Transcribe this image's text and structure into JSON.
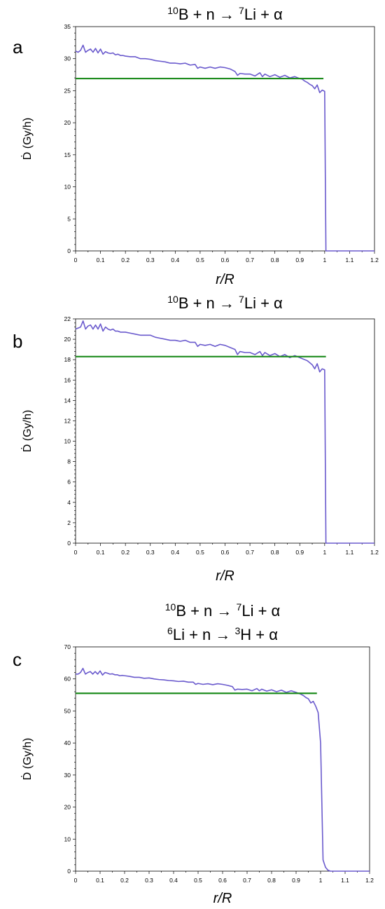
{
  "colors": {
    "series": "#6a5acd",
    "mean": "#1e8c1e",
    "axis": "#000000"
  },
  "chart_data": [
    {
      "type": "line",
      "panel": "a",
      "title_lines": [
        {
          "b_mass": "10",
          "b_text": "B + n → ",
          "li_mass": "7",
          "li_text": "Li + α"
        }
      ],
      "xlabel": "r/R",
      "ylabel": "Ḋ (Gy/h)",
      "xlim": [
        0,
        1.2
      ],
      "ylim": [
        0,
        35
      ],
      "xticks": [
        "0",
        "0.1",
        "0.2",
        "0.3",
        "0.4",
        "0.5",
        "0.6",
        "0.7",
        "0.8",
        "0.9",
        "1",
        "1.1",
        "1.2"
      ],
      "yticks": [
        "0",
        "5",
        "10",
        "15",
        "20",
        "25",
        "30",
        "35"
      ],
      "ytick_values": [
        0,
        5,
        10,
        15,
        20,
        25,
        30,
        35
      ],
      "mean": {
        "value": 26.9,
        "x_range": [
          0,
          0.995
        ]
      },
      "series": [
        {
          "x": [
            0,
            0.01,
            0.02,
            0.03,
            0.04,
            0.05,
            0.06,
            0.07,
            0.08,
            0.09,
            0.1,
            0.11,
            0.12,
            0.13,
            0.14,
            0.15,
            0.16,
            0.17,
            0.18,
            0.19,
            0.2,
            0.22,
            0.24,
            0.26,
            0.28,
            0.3,
            0.32,
            0.34,
            0.36,
            0.38,
            0.4,
            0.42,
            0.44,
            0.46,
            0.48,
            0.49,
            0.5,
            0.52,
            0.54,
            0.56,
            0.58,
            0.6,
            0.62,
            0.64,
            0.65,
            0.66,
            0.68,
            0.7,
            0.72,
            0.74,
            0.75,
            0.76,
            0.78,
            0.8,
            0.82,
            0.84,
            0.86,
            0.88,
            0.9,
            0.91,
            0.92,
            0.93,
            0.94,
            0.95,
            0.96,
            0.97,
            0.98,
            0.99,
            1.0,
            1.005,
            1.01,
            1.05,
            1.1,
            1.15,
            1.2
          ],
          "y": [
            31.2,
            31.0,
            31.3,
            32.1,
            31.0,
            31.3,
            31.5,
            31.0,
            31.6,
            30.9,
            31.5,
            30.7,
            31.1,
            30.9,
            30.8,
            30.9,
            30.6,
            30.7,
            30.5,
            30.5,
            30.4,
            30.3,
            30.3,
            30.0,
            30.0,
            29.9,
            29.7,
            29.6,
            29.5,
            29.3,
            29.3,
            29.2,
            29.3,
            29.0,
            29.1,
            28.5,
            28.7,
            28.5,
            28.7,
            28.5,
            28.7,
            28.6,
            28.4,
            28.0,
            27.4,
            27.7,
            27.6,
            27.6,
            27.3,
            27.8,
            27.2,
            27.6,
            27.2,
            27.5,
            27.1,
            27.4,
            27.0,
            27.2,
            26.9,
            26.8,
            26.5,
            26.3,
            26.0,
            25.8,
            25.3,
            25.9,
            24.7,
            25.1,
            24.9,
            0.0,
            0.0,
            0.0,
            0.0,
            0.0,
            0.0
          ]
        }
      ]
    },
    {
      "type": "line",
      "panel": "b",
      "title_lines": [
        {
          "b_mass": "10",
          "b_text": "B + n → ",
          "li_mass": "7",
          "li_text": "Li + α"
        }
      ],
      "xlabel": "r/R",
      "ylabel": "Ḋ (Gy/h)",
      "xlim": [
        0,
        1.2
      ],
      "ylim": [
        0,
        22
      ],
      "xticks": [
        "0",
        "0.1",
        "0.2",
        "0.3",
        "0.4",
        "0.5",
        "0.6",
        "0.7",
        "0.8",
        "0.9",
        "1",
        "1.1",
        "1.2"
      ],
      "yticks": [
        "0",
        "2",
        "4",
        "6",
        "8",
        "10",
        "12",
        "14",
        "16",
        "18",
        "20",
        "22"
      ],
      "ytick_values": [
        0,
        2,
        4,
        6,
        8,
        10,
        12,
        14,
        16,
        18,
        20,
        22
      ],
      "mean": {
        "value": 18.3,
        "x_range": [
          0,
          1.005
        ]
      },
      "series": [
        {
          "x": [
            0,
            0.01,
            0.02,
            0.03,
            0.04,
            0.05,
            0.06,
            0.07,
            0.08,
            0.09,
            0.1,
            0.11,
            0.12,
            0.13,
            0.14,
            0.15,
            0.16,
            0.17,
            0.18,
            0.19,
            0.2,
            0.22,
            0.24,
            0.26,
            0.28,
            0.3,
            0.32,
            0.34,
            0.36,
            0.38,
            0.4,
            0.42,
            0.44,
            0.46,
            0.48,
            0.49,
            0.5,
            0.52,
            0.54,
            0.56,
            0.58,
            0.6,
            0.62,
            0.64,
            0.65,
            0.66,
            0.68,
            0.7,
            0.72,
            0.74,
            0.75,
            0.76,
            0.78,
            0.8,
            0.82,
            0.84,
            0.86,
            0.88,
            0.9,
            0.91,
            0.92,
            0.93,
            0.94,
            0.95,
            0.96,
            0.97,
            0.98,
            0.99,
            1.0,
            1.005,
            1.01,
            1.05,
            1.1,
            1.15,
            1.2
          ],
          "y": [
            21.0,
            21.1,
            21.2,
            21.8,
            21.0,
            21.3,
            21.4,
            21.0,
            21.4,
            21.0,
            21.5,
            20.8,
            21.2,
            21.0,
            20.9,
            21.0,
            20.8,
            20.8,
            20.7,
            20.7,
            20.7,
            20.6,
            20.5,
            20.4,
            20.4,
            20.4,
            20.2,
            20.1,
            20.0,
            19.9,
            19.9,
            19.8,
            19.9,
            19.7,
            19.7,
            19.3,
            19.5,
            19.4,
            19.5,
            19.3,
            19.5,
            19.4,
            19.2,
            19.0,
            18.5,
            18.8,
            18.7,
            18.7,
            18.5,
            18.8,
            18.4,
            18.7,
            18.4,
            18.6,
            18.3,
            18.5,
            18.2,
            18.4,
            18.2,
            18.1,
            18.0,
            17.9,
            17.7,
            17.5,
            17.1,
            17.6,
            16.8,
            17.1,
            17.0,
            0.0,
            0.0,
            0.0,
            0.0,
            0.0,
            0.0
          ]
        }
      ]
    },
    {
      "type": "line",
      "panel": "c",
      "title_lines": [
        {
          "b_mass": "10",
          "b_text": "B + n → ",
          "li_mass": "7",
          "li_text": "Li + α"
        },
        {
          "b_mass": "6",
          "b_text": "Li + n → ",
          "li_mass": "3",
          "li_text": "H + α"
        }
      ],
      "xlabel": "r/R",
      "ylabel": "Ḋ (Gy/h)",
      "xlim": [
        0,
        1.2
      ],
      "ylim": [
        0,
        70
      ],
      "xticks": [
        "0",
        "0.1",
        "0.2",
        "0.3",
        "0.4",
        "0.5",
        "0.6",
        "0.7",
        "0.8",
        "0.9",
        "1",
        "1.1",
        "1.2"
      ],
      "yticks": [
        "0",
        "10",
        "20",
        "30",
        "40",
        "50",
        "60",
        "70"
      ],
      "ytick_values": [
        0,
        10,
        20,
        30,
        40,
        50,
        60,
        70
      ],
      "mean": {
        "value": 55.5,
        "x_range": [
          0,
          0.985
        ]
      },
      "series": [
        {
          "x": [
            0,
            0.01,
            0.02,
            0.03,
            0.04,
            0.05,
            0.06,
            0.07,
            0.08,
            0.09,
            0.1,
            0.11,
            0.12,
            0.13,
            0.14,
            0.15,
            0.16,
            0.17,
            0.18,
            0.19,
            0.2,
            0.22,
            0.24,
            0.26,
            0.28,
            0.3,
            0.32,
            0.34,
            0.36,
            0.38,
            0.4,
            0.42,
            0.44,
            0.46,
            0.48,
            0.49,
            0.5,
            0.52,
            0.54,
            0.56,
            0.58,
            0.6,
            0.62,
            0.64,
            0.65,
            0.66,
            0.68,
            0.7,
            0.72,
            0.74,
            0.75,
            0.76,
            0.78,
            0.8,
            0.82,
            0.84,
            0.86,
            0.88,
            0.9,
            0.91,
            0.92,
            0.93,
            0.94,
            0.95,
            0.96,
            0.97,
            0.98,
            0.99,
            1.0,
            1.01,
            1.02,
            1.03,
            1.04,
            1.05,
            1.1,
            1.15,
            1.2
          ],
          "y": [
            61.5,
            61.5,
            62.0,
            63.3,
            61.5,
            62.0,
            62.3,
            61.5,
            62.3,
            61.5,
            62.5,
            61.2,
            62.0,
            61.8,
            61.5,
            61.6,
            61.3,
            61.3,
            61.0,
            61.1,
            61.0,
            60.8,
            60.5,
            60.5,
            60.2,
            60.3,
            60.0,
            59.8,
            59.7,
            59.5,
            59.4,
            59.2,
            59.3,
            59.0,
            59.0,
            58.3,
            58.6,
            58.3,
            58.5,
            58.2,
            58.5,
            58.3,
            58.0,
            57.6,
            56.5,
            56.8,
            56.7,
            56.8,
            56.3,
            57.0,
            56.3,
            56.8,
            56.2,
            56.6,
            56.0,
            56.5,
            55.8,
            56.3,
            55.8,
            55.5,
            55.2,
            54.8,
            54.2,
            53.8,
            52.5,
            53.0,
            51.5,
            49.5,
            40.0,
            3.5,
            1.2,
            0.3,
            0.0,
            0.0,
            0.0,
            0.0,
            0.0
          ]
        }
      ]
    }
  ]
}
